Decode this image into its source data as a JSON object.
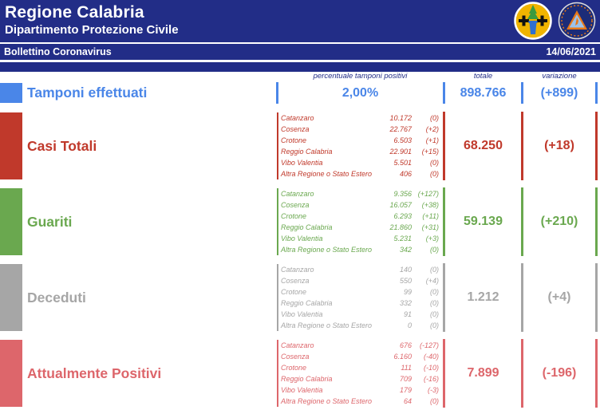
{
  "colors": {
    "navy": "#222d87",
    "blue": "#4a86e8",
    "red": "#c0392b",
    "green": "#6aa84f",
    "gray": "#a6a6a6",
    "salmon": "#dd666b"
  },
  "header": {
    "title": "Regione Calabria",
    "subtitle": "Dipartimento Protezione Civile",
    "bulletin_title": "Bollettino Coronavirus",
    "date": "14/06/2021",
    "logo_regione": "regione-calabria-logo",
    "logo_protezione_civile": "protezione-civile-calabria-logo"
  },
  "columns": {
    "percent": "percentuale tamponi positivi",
    "total": "totale",
    "variation": "variazione"
  },
  "rows": [
    {
      "label": "Tamponi effettuati",
      "color": "#4a86e8",
      "percent": "2,00%",
      "total": "898.766",
      "variation": "(+899)"
    },
    {
      "label": "Casi Totali",
      "color": "#c0392b",
      "total": "68.250",
      "variation": "(+18)",
      "breakdown": [
        {
          "name": "Catanzaro",
          "value": "10.172",
          "variation": "(0)"
        },
        {
          "name": "Cosenza",
          "value": "22.767",
          "variation": "(+2)"
        },
        {
          "name": "Crotone",
          "value": "6.503",
          "variation": "(+1)"
        },
        {
          "name": "Reggio Calabria",
          "value": "22.901",
          "variation": "(+15)"
        },
        {
          "name": "Vibo Valentia",
          "value": "5.501",
          "variation": "(0)"
        },
        {
          "name": "Altra Regione o Stato Estero",
          "value": "406",
          "variation": "(0)"
        }
      ]
    },
    {
      "label": "Guariti",
      "color": "#6aa84f",
      "total": "59.139",
      "variation": "(+210)",
      "breakdown": [
        {
          "name": "Catanzaro",
          "value": "9.356",
          "variation": "(+127)"
        },
        {
          "name": "Cosenza",
          "value": "16.057",
          "variation": "(+38)"
        },
        {
          "name": "Crotone",
          "value": "6.293",
          "variation": "(+11)"
        },
        {
          "name": "Reggio Calabria",
          "value": "21.860",
          "variation": "(+31)"
        },
        {
          "name": "Vibo Valentia",
          "value": "5.231",
          "variation": "(+3)"
        },
        {
          "name": "Altra Regione o Stato Estero",
          "value": "342",
          "variation": "(0)"
        }
      ]
    },
    {
      "label": "Deceduti",
      "color": "#a6a6a6",
      "total": "1.212",
      "variation": "(+4)",
      "breakdown": [
        {
          "name": "Catanzaro",
          "value": "140",
          "variation": "(0)"
        },
        {
          "name": "Cosenza",
          "value": "550",
          "variation": "(+4)"
        },
        {
          "name": "Crotone",
          "value": "99",
          "variation": "(0)"
        },
        {
          "name": "Reggio Calabria",
          "value": "332",
          "variation": "(0)"
        },
        {
          "name": "Vibo Valentia",
          "value": "91",
          "variation": "(0)"
        },
        {
          "name": "Altra Regione o Stato Estero",
          "value": "0",
          "variation": "(0)"
        }
      ]
    },
    {
      "label": "Attualmente Positivi",
      "color": "#dd666b",
      "total": "7.899",
      "variation": "(-196)",
      "breakdown": [
        {
          "name": "Catanzaro",
          "value": "676",
          "variation": "(-127)"
        },
        {
          "name": "Cosenza",
          "value": "6.160",
          "variation": "(-40)"
        },
        {
          "name": "Crotone",
          "value": "111",
          "variation": "(-10)"
        },
        {
          "name": "Reggio Calabria",
          "value": "709",
          "variation": "(-16)"
        },
        {
          "name": "Vibo Valentia",
          "value": "179",
          "variation": "(-3)"
        },
        {
          "name": "Altra Regione o Stato Estero",
          "value": "64",
          "variation": "(0)"
        }
      ]
    }
  ]
}
